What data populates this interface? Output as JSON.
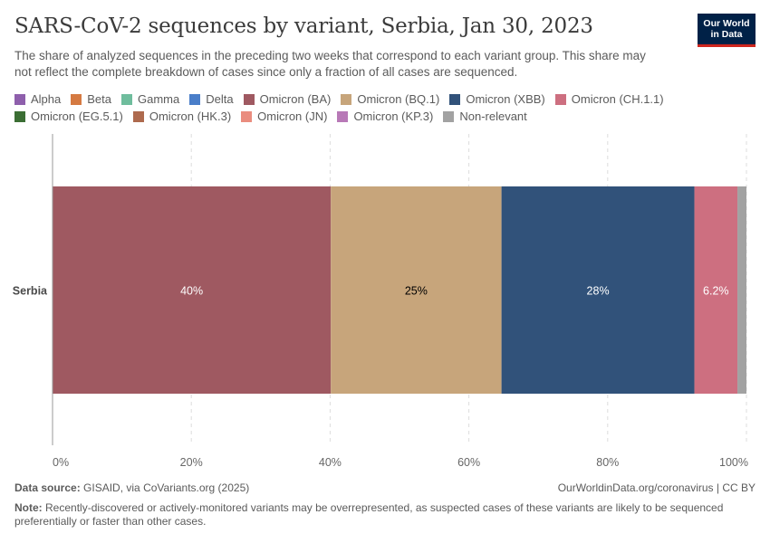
{
  "header": {
    "title": "SARS-CoV-2 sequences by variant, Serbia, Jan 30, 2023",
    "subtitle": "The share of analyzed sequences in the preceding two weeks that correspond to each variant group. This share may not reflect the complete breakdown of cases since only a fraction of all cases are sequenced."
  },
  "logo": {
    "line1": "Our World",
    "line2": "in Data"
  },
  "legend": [
    {
      "label": "Alpha",
      "color": "#8e5fac"
    },
    {
      "label": "Beta",
      "color": "#d57a42"
    },
    {
      "label": "Gamma",
      "color": "#6fbd9d"
    },
    {
      "label": "Delta",
      "color": "#4a7ec9"
    },
    {
      "label": "Omicron (BA)",
      "color": "#9f5961"
    },
    {
      "label": "Omicron (BQ.1)",
      "color": "#c7a57b"
    },
    {
      "label": "Omicron (XBB)",
      "color": "#31527a"
    },
    {
      "label": "Omicron (CH.1.1)",
      "color": "#cd6f80"
    },
    {
      "label": "Omicron (EG.5.1)",
      "color": "#3b6e34"
    },
    {
      "label": "Omicron (HK.3)",
      "color": "#ae6a4e"
    },
    {
      "label": "Omicron (JN)",
      "color": "#ea8d7f"
    },
    {
      "label": "Omicron (KP.3)",
      "color": "#b879b7"
    },
    {
      "label": "Non-relevant",
      "color": "#a2a2a2"
    }
  ],
  "chart_data": {
    "type": "bar",
    "orientation": "horizontal",
    "stacked": true,
    "categories": [
      "Serbia"
    ],
    "series": [
      {
        "name": "Omicron (BA)",
        "values": [
          40.1
        ],
        "color": "#9f5961",
        "label": "40%",
        "label_color": "#ffffff"
      },
      {
        "name": "Omicron (BQ.1)",
        "values": [
          24.6
        ],
        "color": "#c7a57b",
        "label": "25%",
        "label_color": "#000000"
      },
      {
        "name": "Omicron (XBB)",
        "values": [
          27.8
        ],
        "color": "#31527a",
        "label": "28%",
        "label_color": "#ffffff"
      },
      {
        "name": "Omicron (CH.1.1)",
        "values": [
          6.2
        ],
        "color": "#cd6f80",
        "label": "6.2%",
        "label_color": "#ffffff"
      },
      {
        "name": "Non-relevant",
        "values": [
          1.3
        ],
        "color": "#a2a2a2",
        "label": "",
        "label_color": "#ffffff"
      }
    ],
    "xlim": [
      0,
      100
    ],
    "xticks": [
      0,
      20,
      40,
      60,
      80,
      100
    ],
    "xtick_labels": [
      "0%",
      "20%",
      "40%",
      "60%",
      "80%",
      "100%"
    ],
    "grid": "vertical dashed",
    "legend_position": "top"
  },
  "footer": {
    "source_label": "Data source:",
    "source_text": "GISAID, via CoVariants.org (2025)",
    "url": "OurWorldinData.org/coronavirus | CC BY",
    "note_label": "Note:",
    "note_text": "Recently-discovered or actively-monitored variants may be overrepresented, as suspected cases of these variants are likely to be sequenced preferentially or faster than other cases."
  }
}
